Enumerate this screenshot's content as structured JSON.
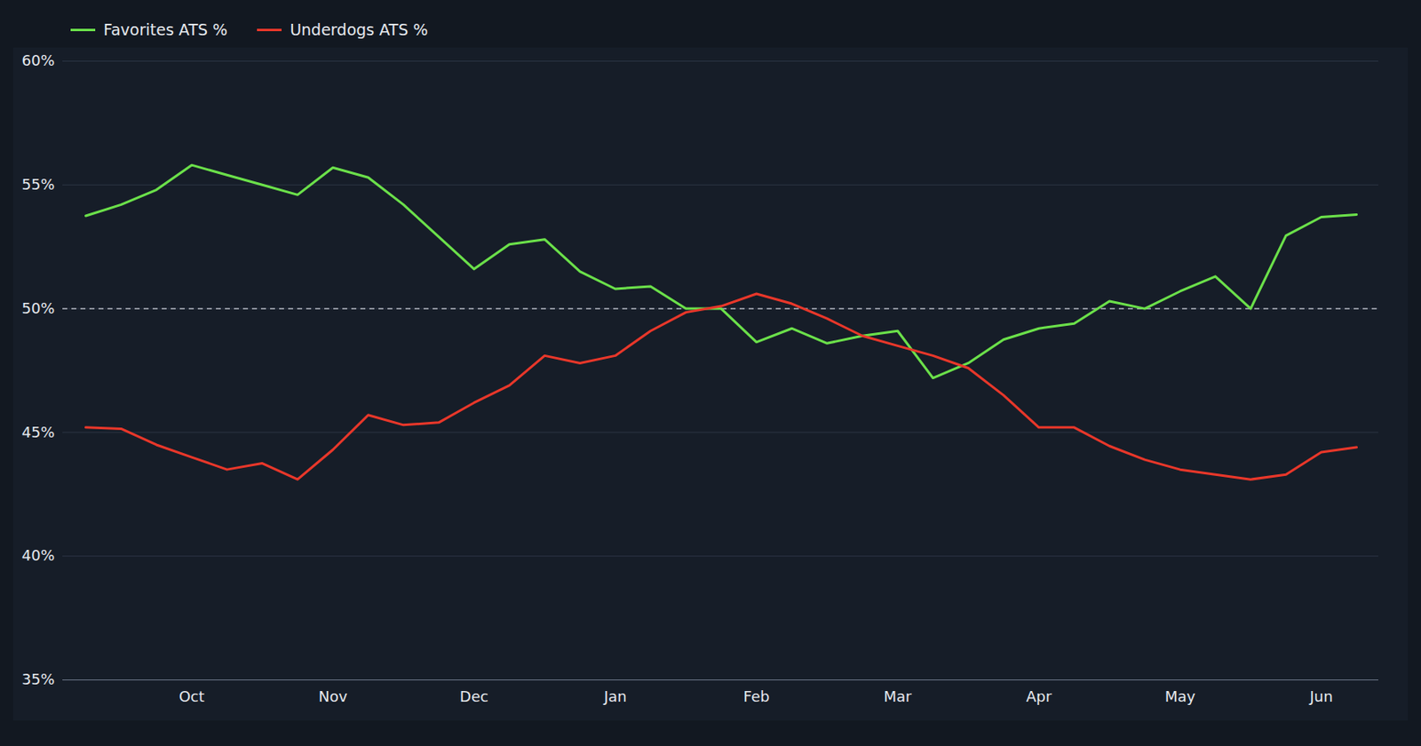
{
  "chart_data": {
    "type": "line",
    "categories": [
      null,
      null,
      null,
      "Oct",
      null,
      null,
      null,
      "Nov",
      null,
      null,
      null,
      "Dec",
      null,
      null,
      null,
      "Jan",
      null,
      null,
      null,
      "Feb",
      null,
      null,
      null,
      "Mar",
      null,
      null,
      null,
      "Apr",
      null,
      null,
      null,
      "May",
      null,
      null,
      null,
      "Jun",
      null
    ],
    "series": [
      {
        "name": "Favorites ATS %",
        "color": "#6be04a",
        "values": [
          53.75,
          54.2,
          54.8,
          55.8,
          55.4,
          55.0,
          54.6,
          55.7,
          55.3,
          54.2,
          52.9,
          51.6,
          52.6,
          52.8,
          51.5,
          50.8,
          50.9,
          50.0,
          50.0,
          48.65,
          49.2,
          48.6,
          48.9,
          49.1,
          47.2,
          47.8,
          48.75,
          49.2,
          49.4,
          50.3,
          50.0,
          50.7,
          51.3,
          50.0,
          52.95,
          53.7,
          53.8
        ]
      },
      {
        "name": "Underdogs ATS %",
        "color": "#e8372a",
        "values": [
          45.2,
          45.15,
          44.5,
          44.0,
          43.5,
          43.75,
          43.1,
          44.3,
          45.7,
          45.3,
          45.4,
          46.2,
          46.9,
          48.1,
          47.8,
          48.1,
          49.1,
          49.85,
          50.1,
          50.6,
          50.2,
          49.6,
          48.9,
          48.5,
          48.1,
          47.6,
          46.5,
          45.2,
          45.2,
          44.45,
          43.9,
          43.5,
          43.3,
          43.1,
          43.3,
          44.2,
          44.4
        ]
      }
    ],
    "ylim": [
      35,
      60
    ],
    "yticks": [
      {
        "value": 35,
        "label": "35%"
      },
      {
        "value": 40,
        "label": "40%"
      },
      {
        "value": 45,
        "label": "45%"
      },
      {
        "value": 50,
        "label": "50%"
      },
      {
        "value": 55,
        "label": "55%"
      },
      {
        "value": 60,
        "label": "60%"
      }
    ],
    "hline": 50,
    "grid": true,
    "legend": "top-left",
    "marker": "none",
    "line_style": "solid"
  }
}
